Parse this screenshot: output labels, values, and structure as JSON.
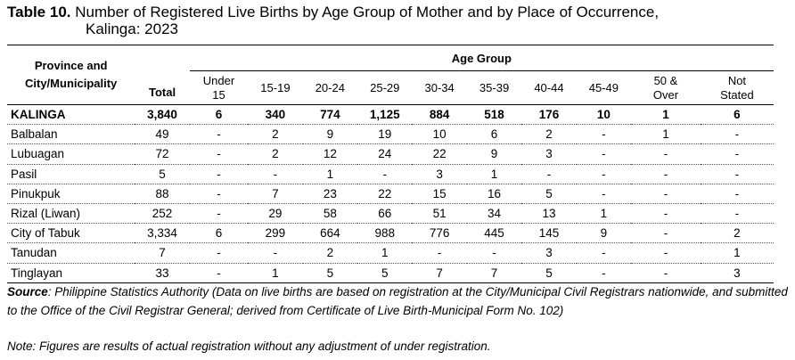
{
  "title": {
    "label": "Table 10.",
    "text": "Number of Registered Live Births by Age Group of Mother and by Place of Occurrence,",
    "line2": "Kalinga: 2023"
  },
  "headers": {
    "province_line1": "Province and",
    "province_line2": "City/Municipality",
    "total": "Total",
    "age_group": "Age Group",
    "under15_line1": "Under",
    "under15_line2": "15",
    "a1519": "15-19",
    "a2024": "20-24",
    "a2529": "25-29",
    "a3034": "30-34",
    "a3539": "35-39",
    "a4044": "40-44",
    "a4549": "45-49",
    "over50_line1": "50 &",
    "over50_line2": "Over",
    "notstated_line1": "Not",
    "notstated_line2": "Stated"
  },
  "rows": [
    {
      "name": "KALINGA",
      "total": "3,840",
      "under15": "6",
      "a1519": "340",
      "a2024": "774",
      "a2529": "1,125",
      "a3034": "884",
      "a3539": "518",
      "a4044": "176",
      "a4549": "10",
      "over50": "1",
      "notstated": "6"
    },
    {
      "name": "Balbalan",
      "total": "49",
      "under15": "-",
      "a1519": "2",
      "a2024": "9",
      "a2529": "19",
      "a3034": "10",
      "a3539": "6",
      "a4044": "2",
      "a4549": "-",
      "over50": "1",
      "notstated": "-"
    },
    {
      "name": "Lubuagan",
      "total": "72",
      "under15": "-",
      "a1519": "2",
      "a2024": "12",
      "a2529": "24",
      "a3034": "22",
      "a3539": "9",
      "a4044": "3",
      "a4549": "-",
      "over50": "-",
      "notstated": "-"
    },
    {
      "name": "Pasil",
      "total": "5",
      "under15": "-",
      "a1519": "-",
      "a2024": "1",
      "a2529": "-",
      "a3034": "3",
      "a3539": "1",
      "a4044": "-",
      "a4549": "-",
      "over50": "-",
      "notstated": "-"
    },
    {
      "name": "Pinukpuk",
      "total": "88",
      "under15": "-",
      "a1519": "7",
      "a2024": "23",
      "a2529": "22",
      "a3034": "15",
      "a3539": "16",
      "a4044": "5",
      "a4549": "-",
      "over50": "-",
      "notstated": "-"
    },
    {
      "name": "Rizal (Liwan)",
      "total": "252",
      "under15": "-",
      "a1519": "29",
      "a2024": "58",
      "a2529": "66",
      "a3034": "51",
      "a3539": "34",
      "a4044": "13",
      "a4549": "1",
      "over50": "-",
      "notstated": "-"
    },
    {
      "name": "City of Tabuk",
      "total": "3,334",
      "under15": "6",
      "a1519": "299",
      "a2024": "664",
      "a2529": "988",
      "a3034": "776",
      "a3539": "445",
      "a4044": "145",
      "a4549": "9",
      "over50": "-",
      "notstated": "2"
    },
    {
      "name": "Tanudan",
      "total": "7",
      "under15": "-",
      "a1519": "-",
      "a2024": "2",
      "a2529": "1",
      "a3034": "-",
      "a3539": "-",
      "a4044": "3",
      "a4549": "-",
      "over50": "-",
      "notstated": "1"
    },
    {
      "name": "Tinglayan",
      "total": "33",
      "under15": "-",
      "a1519": "1",
      "a2024": "5",
      "a2529": "5",
      "a3034": "7",
      "a3539": "7",
      "a4044": "5",
      "a4549": "-",
      "over50": "-",
      "notstated": "3"
    }
  ],
  "source": {
    "label": "Source",
    "text": ": Philippine Statistics Authority (Data on live births are based on registration at the City/Municipal Civil Registrars nationwide, and submitted to the Office of the Civil Registrar General; derived from Certificate of Live Birth-Municipal Form No. 102)"
  },
  "note": "Note: Figures are results of actual registration without any adjustment of under registration."
}
